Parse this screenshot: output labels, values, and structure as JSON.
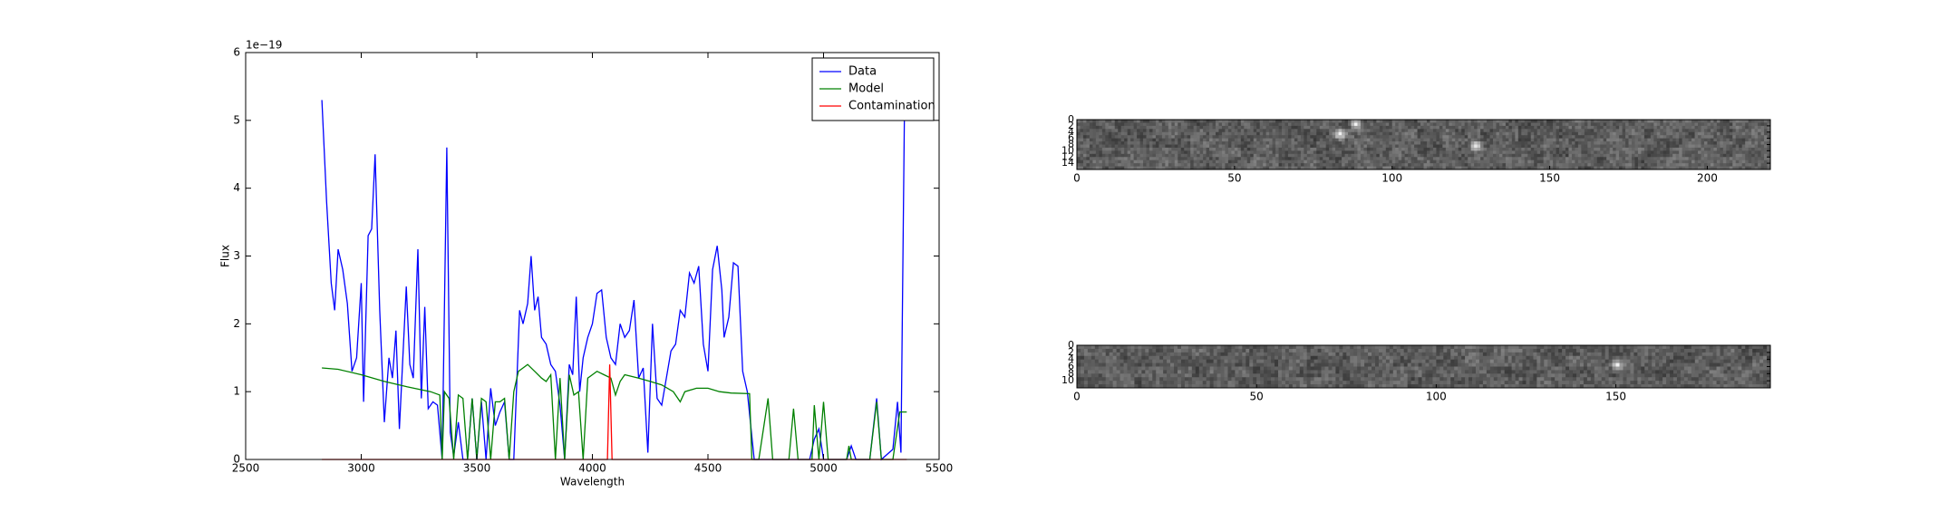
{
  "chart_data": [
    {
      "type": "line",
      "xlabel": "Wavelength",
      "ylabel": "Flux",
      "offset_text": "1e−19",
      "legend": "upper right",
      "xlim": [
        2500,
        5500
      ],
      "xticks": [
        2500,
        3000,
        3500,
        4000,
        4500,
        5000,
        5500
      ],
      "ylim": [
        0,
        6
      ],
      "yticks": [
        0,
        1,
        2,
        3,
        4,
        5,
        6
      ],
      "series": [
        {
          "name": "Data",
          "color": "#0000ff",
          "x": [
            2830,
            2850,
            2870,
            2885,
            2900,
            2920,
            2940,
            2960,
            2980,
            3000,
            3010,
            3030,
            3045,
            3060,
            3080,
            3100,
            3120,
            3135,
            3150,
            3165,
            3180,
            3195,
            3210,
            3225,
            3245,
            3260,
            3275,
            3290,
            3310,
            3330,
            3350,
            3370,
            3385,
            3400,
            3420,
            3440,
            3460,
            3480,
            3500,
            3520,
            3540,
            3560,
            3580,
            3600,
            3620,
            3640,
            3660,
            3685,
            3700,
            3720,
            3735,
            3750,
            3765,
            3780,
            3800,
            3820,
            3840,
            3860,
            3880,
            3900,
            3915,
            3930,
            3945,
            3960,
            3980,
            4000,
            4020,
            4040,
            4060,
            4080,
            4100,
            4120,
            4140,
            4160,
            4180,
            4200,
            4220,
            4240,
            4260,
            4280,
            4300,
            4320,
            4340,
            4360,
            4380,
            4400,
            4420,
            4440,
            4460,
            4480,
            4500,
            4520,
            4540,
            4560,
            4570,
            4590,
            4610,
            4630,
            4650,
            4670,
            4700,
            4750,
            4800,
            4850,
            4900,
            4940,
            4960,
            4980,
            5000,
            5050,
            5100,
            5120,
            5140,
            5200,
            5230,
            5250,
            5300,
            5320,
            5335,
            5350
          ],
          "values": [
            5.3,
            3.8,
            2.6,
            2.2,
            3.1,
            2.8,
            2.3,
            1.3,
            1.5,
            2.6,
            0.85,
            3.3,
            3.4,
            4.5,
            2.2,
            0.55,
            1.5,
            1.2,
            1.9,
            0.45,
            1.5,
            2.55,
            1.4,
            1.2,
            3.1,
            0.9,
            2.25,
            0.75,
            0.85,
            0.8,
            0,
            4.6,
            0.4,
            0.05,
            0.55,
            0,
            0,
            0.9,
            0,
            0.85,
            0,
            1.05,
            0.5,
            0.7,
            0.85,
            0,
            0,
            2.2,
            2,
            2.3,
            3,
            2.2,
            2.4,
            1.8,
            1.7,
            1.4,
            1.3,
            0.8,
            0,
            1.4,
            1.25,
            2.4,
            1,
            1.5,
            1.8,
            2,
            2.45,
            2.5,
            1.8,
            1.5,
            1.4,
            2,
            1.8,
            1.9,
            2.35,
            1.2,
            1.35,
            0.1,
            2,
            0.9,
            0.8,
            1.2,
            1.6,
            1.7,
            2.2,
            2.1,
            2.75,
            2.6,
            2.85,
            1.7,
            1.3,
            2.8,
            3.15,
            2.5,
            1.8,
            2.1,
            2.9,
            2.85,
            1.3,
            1,
            0,
            0,
            0,
            0,
            0,
            0,
            0.3,
            0.45,
            0,
            0,
            0,
            0.2,
            0,
            0,
            0.9,
            0,
            0.15,
            0.85,
            0.1,
            5.2
          ]
        },
        {
          "name": "Model",
          "color": "#008000",
          "x": [
            2830,
            2900,
            3000,
            3100,
            3200,
            3300,
            3340,
            3350,
            3360,
            3380,
            3400,
            3420,
            3440,
            3460,
            3480,
            3500,
            3520,
            3540,
            3560,
            3580,
            3600,
            3620,
            3640,
            3660,
            3680,
            3700,
            3720,
            3750,
            3780,
            3800,
            3820,
            3840,
            3860,
            3880,
            3900,
            3920,
            3940,
            3960,
            3980,
            4000,
            4020,
            4050,
            4080,
            4100,
            4120,
            4140,
            4200,
            4250,
            4300,
            4350,
            4380,
            4400,
            4450,
            4500,
            4550,
            4600,
            4680,
            4690,
            4720,
            4760,
            4780,
            4850,
            4870,
            4890,
            4950,
            4960,
            4980,
            5000,
            5020,
            5100,
            5110,
            5120,
            5200,
            5230,
            5250,
            5300,
            5330,
            5360
          ],
          "values": [
            1.35,
            1.33,
            1.25,
            1.15,
            1.07,
            1,
            0.95,
            0,
            1,
            0.9,
            0,
            0.95,
            0.9,
            0,
            0.9,
            0,
            0.9,
            0.85,
            0,
            0.85,
            0.85,
            0.9,
            0,
            1,
            1.3,
            1.35,
            1.4,
            1.3,
            1.2,
            1.15,
            1.25,
            0,
            1.2,
            0,
            1.25,
            0.95,
            1,
            0,
            1.2,
            1.25,
            1.3,
            1.25,
            1.2,
            0.95,
            1.15,
            1.25,
            1.2,
            1.15,
            1.1,
            1,
            0.85,
            1,
            1.05,
            1.05,
            1,
            0.98,
            0.97,
            0,
            0,
            0.9,
            0,
            0,
            0.75,
            0,
            0,
            0.8,
            0,
            0.85,
            0,
            0,
            0.2,
            0,
            0,
            0.85,
            0,
            0,
            0.7,
            0.7
          ]
        },
        {
          "name": "Contamination",
          "color": "#ff0000",
          "x": [
            2830,
            4065,
            4075,
            4085,
            5360
          ],
          "values": [
            0,
            0,
            1.4,
            0,
            0
          ]
        }
      ]
    },
    {
      "type": "image",
      "xlim": [
        0,
        220
      ],
      "xticks": [
        0,
        50,
        100,
        150,
        200
      ],
      "ylim": [
        16,
        0
      ],
      "yticks": [
        0,
        2,
        4,
        6,
        8,
        10,
        12,
        14
      ]
    },
    {
      "type": "image",
      "xlim": [
        0,
        193
      ],
      "xticks": [
        0,
        50,
        100,
        150
      ],
      "ylim": [
        12,
        0
      ],
      "yticks": [
        0,
        2,
        4,
        6,
        8,
        10
      ]
    }
  ]
}
